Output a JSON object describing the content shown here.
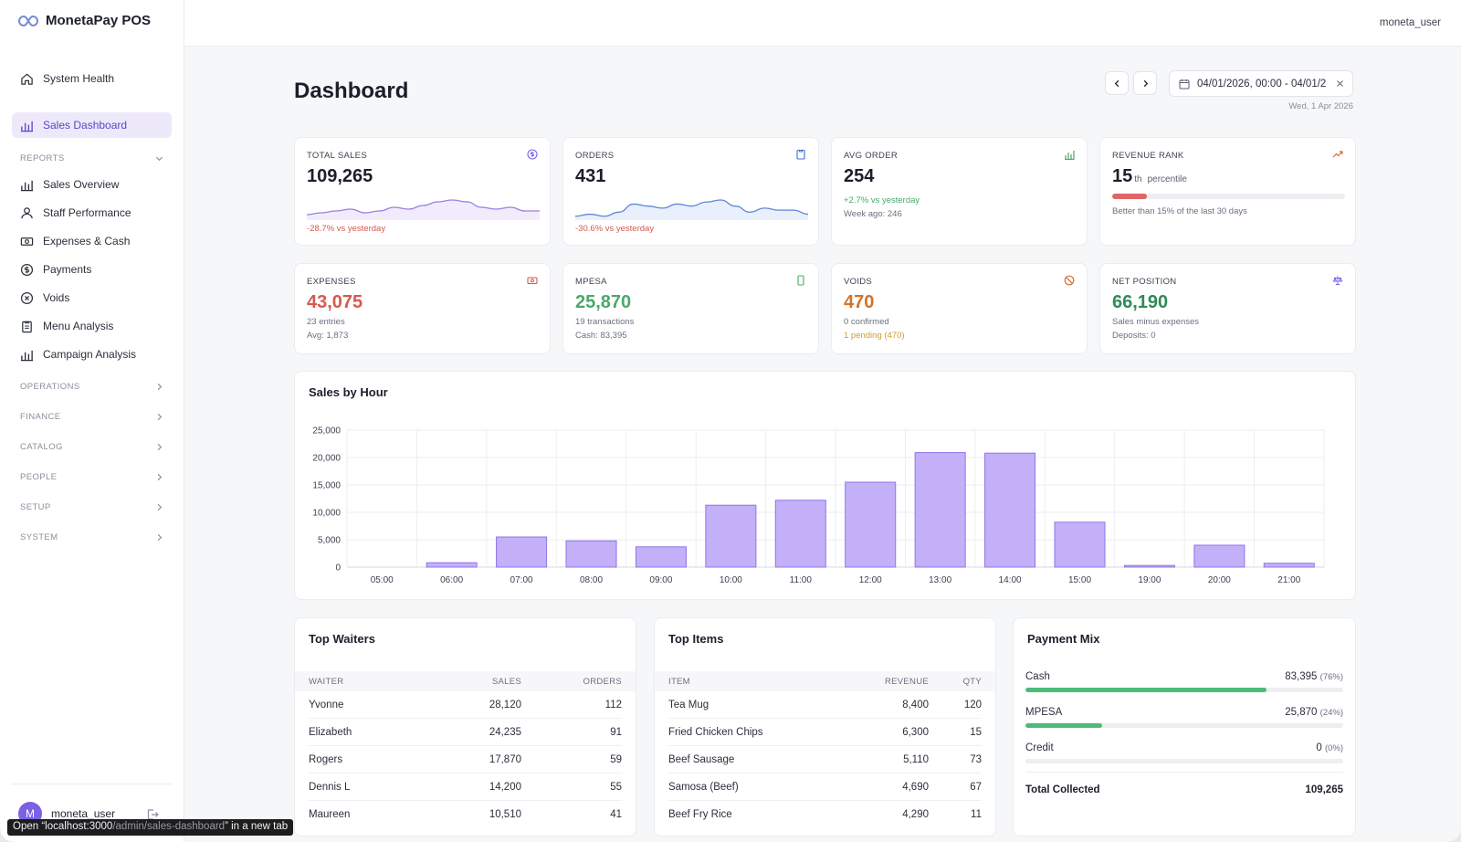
{
  "app": {
    "title": "MonetaPay POS",
    "user": "moneta_user",
    "avatar_initial": "M"
  },
  "sidebar": {
    "top_items": [
      {
        "label": "System Health",
        "icon": "home-icon"
      },
      {
        "label": "Sales Dashboard",
        "icon": "bar-chart-icon",
        "active": true
      }
    ],
    "reports_label": "REPORTS",
    "report_items": [
      {
        "label": "Sales Overview",
        "icon": "bar-chart-icon"
      },
      {
        "label": "Staff Performance",
        "icon": "users-icon"
      },
      {
        "label": "Expenses & Cash",
        "icon": "cash-icon"
      },
      {
        "label": "Payments",
        "icon": "dollar-circle-icon"
      },
      {
        "label": "Voids",
        "icon": "x-circle-icon"
      },
      {
        "label": "Menu Analysis",
        "icon": "clipboard-icon"
      },
      {
        "label": "Campaign Analysis",
        "icon": "bar-chart-icon"
      }
    ],
    "sections": [
      "OPERATIONS",
      "FINANCE",
      "CATALOG",
      "PEOPLE",
      "SETUP",
      "SYSTEM"
    ]
  },
  "tooltip": {
    "prefix": "Open “localhost:3000",
    "path": "/admin/sales-dashboard",
    "suffix": "” in a new tab"
  },
  "header": {
    "title": "Dashboard",
    "date_range": "04/01/2026, 00:00 - 04/01/2",
    "date_sub": "Wed, 1 Apr 2026"
  },
  "kpis": {
    "total_sales": {
      "label": "TOTAL SALES",
      "value": "109,265",
      "sub": "-28.7% vs yesterday"
    },
    "orders": {
      "label": "ORDERS",
      "value": "431",
      "sub": "-30.6% vs yesterday"
    },
    "avg_order": {
      "label": "AVG ORDER",
      "value": "254",
      "sub1": "+2.7% vs yesterday",
      "sub2": "Week ago: 246"
    },
    "revenue_rank": {
      "label": "REVENUE RANK",
      "value": "15",
      "suffix": "th",
      "text": "percentile",
      "sub": "Better than 15% of the last 30 days",
      "progress": 0.15
    },
    "expenses": {
      "label": "EXPENSES",
      "value": "43,075",
      "sub1": "23 entries",
      "sub2": "Avg: 1,873"
    },
    "mpesa": {
      "label": "MPESA",
      "value": "25,870",
      "sub1": "19 transactions",
      "sub2": "Cash: 83,395"
    },
    "voids": {
      "label": "VOIDS",
      "value": "470",
      "sub1": "0 confirmed",
      "sub2": "1 pending (470)"
    },
    "net_position": {
      "label": "NET POSITION",
      "value": "66,190",
      "sub1": "Sales minus expenses",
      "sub2": "Deposits: 0"
    }
  },
  "sparklines": {
    "total_sales": [
      2,
      3,
      4,
      5,
      3,
      4,
      6,
      5,
      7,
      9,
      10,
      9,
      6,
      5,
      6,
      4,
      4
    ],
    "orders": [
      1,
      2,
      1,
      3,
      7,
      6,
      5,
      7,
      6,
      8,
      9,
      6,
      3,
      5,
      4,
      4,
      2
    ]
  },
  "chart_data": {
    "type": "bar",
    "title": "Sales by Hour",
    "categories": [
      "05:00",
      "06:00",
      "07:00",
      "08:00",
      "09:00",
      "10:00",
      "11:00",
      "12:00",
      "13:00",
      "14:00",
      "15:00",
      "19:00",
      "20:00",
      "21:00"
    ],
    "values": [
      0,
      800,
      5500,
      4800,
      3700,
      11300,
      12200,
      15500,
      20900,
      20800,
      8200,
      300,
      4000,
      700
    ],
    "ylim": [
      0,
      25000
    ],
    "yticks": [
      "0",
      "5,000",
      "10,000",
      "15,000",
      "20,000",
      "25,000"
    ],
    "ytick_values": [
      0,
      5000,
      10000,
      15000,
      20000,
      25000
    ],
    "grid": true,
    "bar_color": "#c4b0f8",
    "bar_stroke": "#8f74e8"
  },
  "top_waiters": {
    "title": "Top Waiters",
    "headers": [
      "WAITER",
      "SALES",
      "ORDERS"
    ],
    "rows": [
      [
        "Yvonne",
        "28,120",
        "112"
      ],
      [
        "Elizabeth",
        "24,235",
        "91"
      ],
      [
        "Rogers",
        "17,870",
        "59"
      ],
      [
        "Dennis L",
        "14,200",
        "55"
      ],
      [
        "Maureen",
        "10,510",
        "41"
      ]
    ]
  },
  "top_items": {
    "title": "Top Items",
    "headers": [
      "ITEM",
      "REVENUE",
      "QTY"
    ],
    "rows": [
      [
        "Tea Mug",
        "8,400",
        "120"
      ],
      [
        "Fried Chicken Chips",
        "6,300",
        "15"
      ],
      [
        "Beef Sausage",
        "5,110",
        "73"
      ],
      [
        "Samosa (Beef)",
        "4,690",
        "67"
      ],
      [
        "Beef Fry Rice",
        "4,290",
        "11"
      ]
    ]
  },
  "payment_mix": {
    "title": "Payment Mix",
    "rows": [
      {
        "label": "Cash",
        "amount": "83,395",
        "pct": "(76%)",
        "fraction": 0.76
      },
      {
        "label": "MPESA",
        "amount": "25,870",
        "pct": "(24%)",
        "fraction": 0.24
      },
      {
        "label": "Credit",
        "amount": "0",
        "pct": "(0%)",
        "fraction": 0
      }
    ],
    "total_label": "Total Collected",
    "total_value": "109,265"
  }
}
